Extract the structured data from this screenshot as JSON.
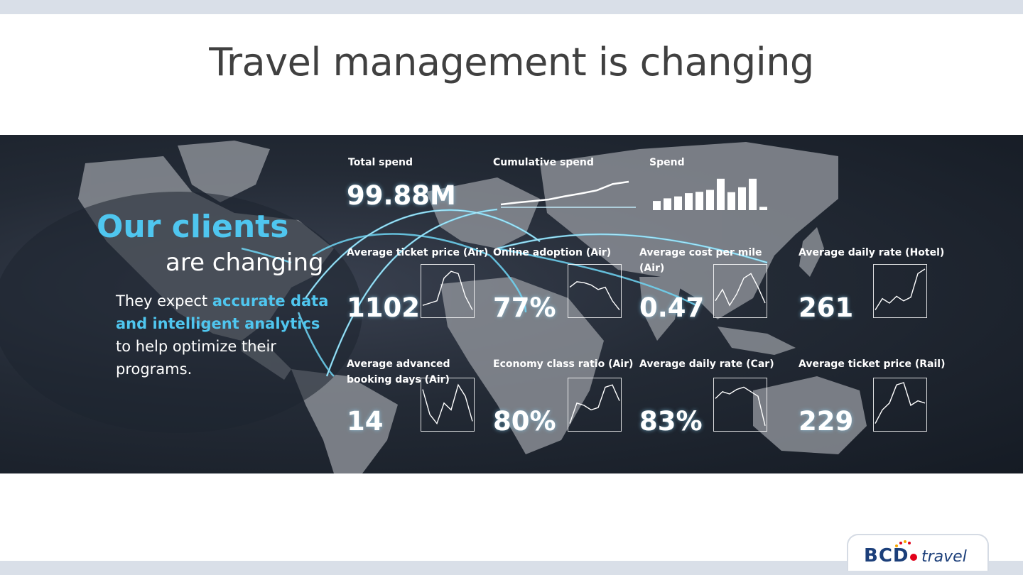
{
  "slide": {
    "title": "Travel management is changing"
  },
  "hero": {
    "headline_1": "Our clients",
    "headline_2": "are changing",
    "sub_1": "They expect ",
    "sub_highlight": "accurate data and intelligent analytics",
    "sub_2": " to help optimize their programs."
  },
  "dashboard": {
    "total_spend": {
      "label": "Total spend",
      "value": "99.88M"
    },
    "cumulative_spend": {
      "label": "Cumulative spend",
      "trend": [
        0.0,
        0.08,
        0.15,
        0.22,
        0.36,
        0.48,
        0.62,
        0.9,
        1.0
      ]
    },
    "spend": {
      "label": "Spend",
      "bars": [
        0.28,
        0.36,
        0.42,
        0.52,
        0.56,
        0.62,
        0.96,
        0.55,
        0.7,
        0.96,
        0.1
      ]
    },
    "metrics": [
      {
        "label": "Average ticket price (Air)",
        "value": "1102",
        "trend": [
          0.2,
          0.25,
          0.3,
          0.8,
          0.95,
          0.9,
          0.4,
          0.1
        ]
      },
      {
        "label": "Online adoption (Air)",
        "value": "77%",
        "trend": [
          0.6,
          0.72,
          0.7,
          0.65,
          0.55,
          0.6,
          0.3,
          0.1
        ]
      },
      {
        "label": "Average cost per mile (Air)",
        "value": "0.47",
        "trend": [
          0.3,
          0.55,
          0.2,
          0.45,
          0.8,
          0.9,
          0.6,
          0.25
        ]
      },
      {
        "label": "Average daily rate (Hotel)",
        "value": "261",
        "trend": [
          0.1,
          0.35,
          0.25,
          0.4,
          0.3,
          0.38,
          0.9,
          1.0
        ]
      },
      {
        "label": "Average advanced booking days (Air)",
        "value": "14",
        "trend": [
          0.85,
          0.3,
          0.1,
          0.55,
          0.4,
          0.95,
          0.7,
          0.15
        ]
      },
      {
        "label": "Economy class ratio (Air)",
        "value": "80%",
        "trend": [
          0.1,
          0.55,
          0.5,
          0.4,
          0.45,
          0.9,
          0.95,
          0.6
        ]
      },
      {
        "label": "Average daily rate (Car)",
        "value": "83%",
        "trend": [
          0.65,
          0.8,
          0.75,
          0.85,
          0.9,
          0.8,
          0.7,
          0.05
        ]
      },
      {
        "label": "Average ticket price (Rail)",
        "value": "229",
        "trend": [
          0.1,
          0.4,
          0.55,
          0.95,
          1.0,
          0.5,
          0.6,
          0.55
        ]
      }
    ]
  },
  "logo": {
    "text_main": "BCD",
    "text_sub": "travel"
  },
  "colors": {
    "accent": "#4fc6ef",
    "brand_blue": "#1c3f7a",
    "brand_red": "#e2001a",
    "banner_bg": "#1e2530"
  }
}
